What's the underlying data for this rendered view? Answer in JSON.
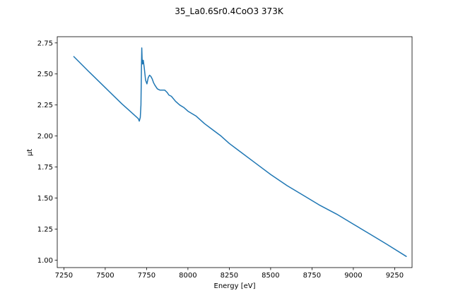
{
  "chart_data": {
    "type": "line",
    "title": "35_La0.6Sr0.4CoO3 373K",
    "xlabel": "Energy [eV]",
    "ylabel": "μt",
    "xlim": [
      7210,
      9355
    ],
    "ylim": [
      0.94,
      2.8
    ],
    "xticks": [
      7250,
      7500,
      7750,
      8000,
      8250,
      8500,
      8750,
      9000,
      9250
    ],
    "xtick_labels": [
      "7250",
      "7500",
      "7750",
      "8000",
      "8250",
      "8500",
      "8750",
      "9000",
      "9250"
    ],
    "yticks": [
      1.0,
      1.25,
      1.5,
      1.75,
      2.0,
      2.25,
      2.5,
      2.75
    ],
    "ytick_labels": [
      "1.00",
      "1.25",
      "1.50",
      "1.75",
      "2.00",
      "2.25",
      "2.50",
      "2.75"
    ],
    "grid": false,
    "line_color": "#1f77b4",
    "series": [
      {
        "name": "",
        "x": [
          7310,
          7400,
          7500,
          7600,
          7650,
          7700,
          7706,
          7712,
          7716,
          7719,
          7721,
          7723,
          7726,
          7730,
          7736,
          7744,
          7752,
          7760,
          7768,
          7776,
          7784,
          7792,
          7800,
          7815,
          7830,
          7845,
          7860,
          7875,
          7885,
          7900,
          7925,
          7950,
          7975,
          8000,
          8050,
          8100,
          8150,
          8200,
          8250,
          8300,
          8400,
          8500,
          8600,
          8700,
          8800,
          8900,
          9000,
          9100,
          9200,
          9320
        ],
        "y": [
          2.64,
          2.52,
          2.39,
          2.26,
          2.2,
          2.14,
          2.12,
          2.15,
          2.25,
          2.55,
          2.71,
          2.62,
          2.58,
          2.61,
          2.55,
          2.45,
          2.42,
          2.47,
          2.49,
          2.48,
          2.46,
          2.43,
          2.41,
          2.38,
          2.37,
          2.37,
          2.37,
          2.35,
          2.33,
          2.32,
          2.28,
          2.25,
          2.23,
          2.2,
          2.16,
          2.1,
          2.05,
          2.0,
          1.94,
          1.89,
          1.79,
          1.69,
          1.6,
          1.52,
          1.44,
          1.37,
          1.29,
          1.21,
          1.13,
          1.03
        ]
      }
    ]
  }
}
